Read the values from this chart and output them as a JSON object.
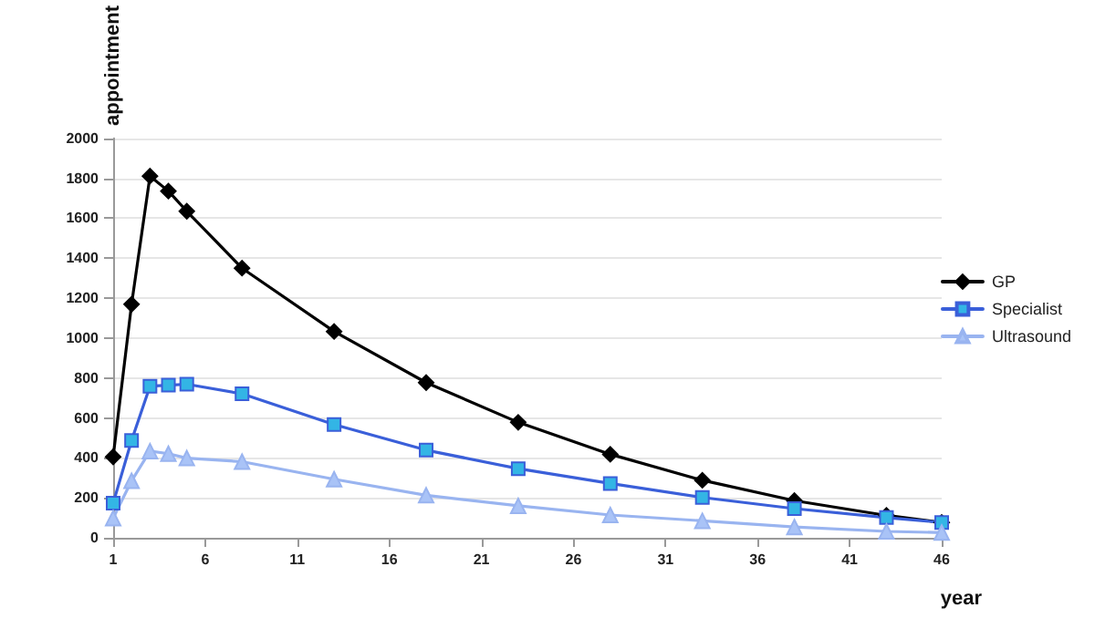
{
  "chart_data": {
    "type": "line",
    "xlabel": "year",
    "ylabel": "appointment",
    "x": [
      1,
      2,
      3,
      4,
      5,
      8,
      13,
      18,
      23,
      28,
      33,
      38,
      43,
      46
    ],
    "series": [
      {
        "name": "GP",
        "color": "#000000",
        "marker": "diamond",
        "values": [
          405,
          1169,
          1811,
          1736,
          1635,
          1350,
          1033,
          777,
          578,
          418,
          288,
          186,
          112,
          77
        ]
      },
      {
        "name": "Specialist",
        "color": "#3a5fd9",
        "marker": "square",
        "values": [
          173,
          487,
          759,
          764,
          769,
          721,
          567,
          439,
          346,
          272,
          202,
          146,
          101,
          77
        ]
      },
      {
        "name": "Ultrasound",
        "color": "#99b4f0",
        "marker": "triangle",
        "values": [
          98,
          285,
          434,
          421,
          399,
          381,
          293,
          213,
          160,
          114,
          85,
          54,
          32,
          26
        ]
      }
    ],
    "xlim": [
      1,
      46
    ],
    "xticks": [
      1,
      6,
      11,
      16,
      21,
      26,
      31,
      36,
      41,
      46
    ],
    "ylim": [
      0,
      2000
    ],
    "yticks": [
      0,
      200,
      400,
      600,
      800,
      1000,
      1200,
      1400,
      1600,
      1800,
      2000
    ],
    "grid": "y",
    "legend": "right"
  }
}
